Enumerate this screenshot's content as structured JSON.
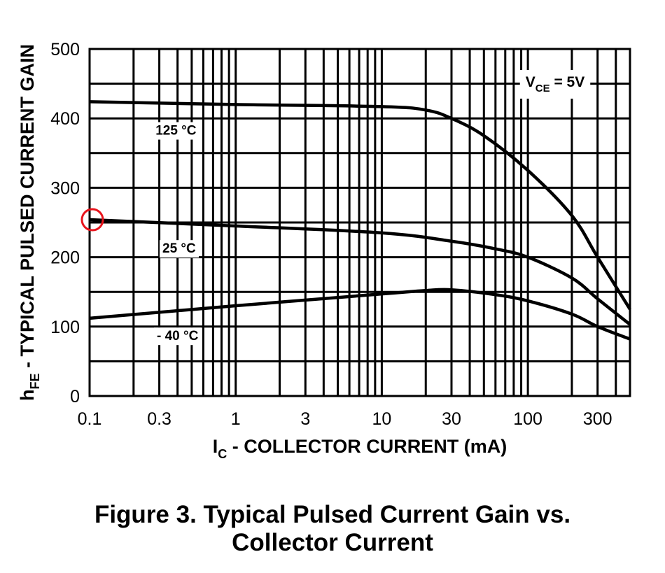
{
  "chart_data": {
    "type": "line",
    "x_scale": "log",
    "xlim": [
      0.1,
      500
    ],
    "ylim": [
      0,
      500
    ],
    "xticks": [
      0.1,
      0.3,
      1,
      3,
      10,
      30,
      100,
      300
    ],
    "xtick_labels": [
      "0.1",
      "0.3",
      "1",
      "3",
      "10",
      "30",
      "100",
      "300"
    ],
    "yticks": [
      0,
      100,
      200,
      300,
      400,
      500
    ],
    "ytick_labels": [
      "0",
      "100",
      "200",
      "300",
      "400",
      "500"
    ],
    "grid": true,
    "xlabel": {
      "main": "I",
      "sub": "C",
      "rest": " - COLLECTOR CURRENT  (mA)"
    },
    "ylabel": {
      "main": "h",
      "sub": "FE",
      "rest": " - TYPICAL PULSED CURRENT GAIN"
    },
    "condition": {
      "main": "V",
      "sub": "CE",
      "rest": " = 5V"
    },
    "series": [
      {
        "name": "125 °C",
        "x": [
          0.1,
          1,
          10,
          20,
          30,
          50,
          100,
          200,
          300,
          500
        ],
        "y": [
          424,
          420,
          417,
          412,
          400,
          375,
          325,
          260,
          200,
          125
        ]
      },
      {
        "name": "25 °C",
        "x": [
          0.1,
          1,
          10,
          30,
          60,
          100,
          200,
          300,
          500
        ],
        "y": [
          254,
          245,
          235,
          223,
          212,
          200,
          170,
          140,
          103
        ]
      },
      {
        "name": "- 40 °C",
        "x": [
          0.1,
          1,
          10,
          20,
          30,
          60,
          100,
          200,
          300,
          500
        ],
        "y": [
          112,
          130,
          147,
          152,
          153,
          146,
          137,
          118,
          100,
          82
        ]
      }
    ],
    "highlight": {
      "x": 0.1,
      "y": 254,
      "color": "#e8141c"
    }
  },
  "figure": {
    "caption_line1": "Figure 3. Typical Pulsed Current Gain vs.",
    "caption_line2": "Collector Current"
  }
}
